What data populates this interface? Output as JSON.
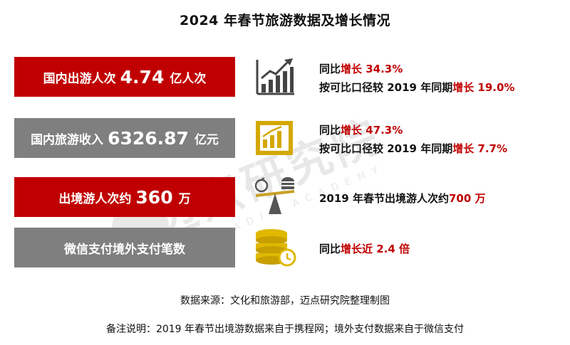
{
  "title": "2024 年春节旅游数据及增长情况",
  "rows": [
    {
      "label_pre": "国内出游人次",
      "label_big": "4.74",
      "label_post": "亿人次",
      "icon": "bar-chart-arrow-icon",
      "lines": [
        {
          "pre": "同比",
          "hl": "增长 34.3%"
        },
        {
          "pre": "按可比口径较 2019 年同期",
          "hl": "增长 19.0%"
        }
      ]
    },
    {
      "label_pre": "国内旅游收入",
      "label_big": "6326.87",
      "label_post": "亿元",
      "icon": "gold-chart-icon",
      "lines": [
        {
          "pre": "同比",
          "hl": "增长 47.3%"
        },
        {
          "pre": "按可比口径较 2019 年同期",
          "hl": "增长 7.7%"
        }
      ]
    },
    {
      "label_pre": "出境游人次约",
      "label_big": "360",
      "label_post": "万",
      "icon": "balance-scale-icon",
      "lines": [
        {
          "pre": "2019 年春节出境游人次约",
          "hl": "700 万"
        }
      ]
    },
    {
      "label_pre": "微信支付境外支付笔数",
      "label_big": "",
      "label_post": "",
      "icon": "coins-clock-icon",
      "lines": [
        {
          "pre": "同比",
          "hl": "增长近 2.4 倍"
        }
      ]
    }
  ],
  "watermark": {
    "cn": "迈点研究院",
    "en": "MEADIN ACADEMY"
  },
  "source": "数据来源：文化和旅游部，迈点研究院整理制图",
  "note": "备注说明：2019 年春节出境游数据来自于携程网；境外支付数据来自于微信支付",
  "colors": {
    "red": "#c00000",
    "grey": "#7f7f7f",
    "gold": "#d4a800"
  }
}
